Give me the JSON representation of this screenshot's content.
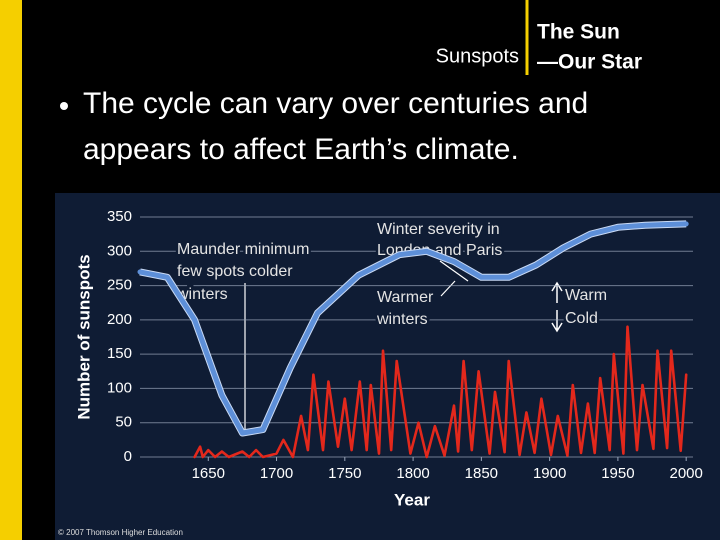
{
  "slide": {
    "left_title": "Sunspots",
    "right_title": [
      "The Sun",
      "—Our Star"
    ],
    "bullet": [
      "The cycle can vary over centuries and",
      "appears to affect Earth’s climate."
    ],
    "credit": "© 2007 Thomson Higher Education"
  },
  "chart_data": {
    "type": "line",
    "xlabel": "Year",
    "ylabel": "Number of sunspots",
    "xlim": [
      1600,
      2005
    ],
    "xticks": [
      1650,
      1700,
      1750,
      1800,
      1850,
      1900,
      1950,
      2000
    ],
    "ylim": [
      0,
      350
    ],
    "yticks": [
      0,
      50,
      100,
      150,
      200,
      250,
      300,
      350
    ],
    "grid": true,
    "annotations": {
      "maunder": [
        "Maunder minimum",
        "few spots colder",
        "winters"
      ],
      "severity": [
        "Winter severity in",
        "London and Paris"
      ],
      "warmer": [
        "Warmer",
        "winters"
      ],
      "warm": "Warm",
      "cold": "Cold"
    },
    "series": [
      {
        "name": "Winter severity",
        "color": "#5d8fd8",
        "x": [
          1600,
          1620,
          1640,
          1660,
          1675,
          1690,
          1710,
          1730,
          1760,
          1790,
          1810,
          1830,
          1850,
          1870,
          1890,
          1910,
          1930,
          1950,
          1970,
          2000
        ],
        "values": [
          270,
          262,
          200,
          90,
          35,
          40,
          130,
          210,
          265,
          295,
          300,
          285,
          262,
          262,
          280,
          305,
          325,
          335,
          338,
          340
        ]
      },
      {
        "name": "Sunspots",
        "color": "#e3281c",
        "x": [
          1640,
          1644,
          1646,
          1650,
          1655,
          1660,
          1665,
          1675,
          1680,
          1685,
          1690,
          1700,
          1705,
          1712,
          1718,
          1723,
          1727,
          1734,
          1738,
          1745,
          1750,
          1755,
          1761,
          1766,
          1769,
          1775,
          1778,
          1784,
          1788,
          1798,
          1804,
          1810,
          1816,
          1823,
          1830,
          1833,
          1837,
          1843,
          1848,
          1856,
          1860,
          1867,
          1870,
          1878,
          1883,
          1889,
          1894,
          1901,
          1906,
          1913,
          1917,
          1923,
          1928,
          1933,
          1937,
          1944,
          1947,
          1954,
          1957,
          1964,
          1968,
          1976,
          1979,
          1986,
          1989,
          1996,
          2000
        ],
        "values": [
          0,
          15,
          0,
          10,
          0,
          8,
          0,
          8,
          0,
          10,
          0,
          5,
          25,
          0,
          60,
          10,
          120,
          10,
          110,
          15,
          85,
          10,
          110,
          10,
          105,
          5,
          155,
          10,
          140,
          5,
          50,
          0,
          45,
          2,
          75,
          8,
          140,
          10,
          125,
          5,
          95,
          7,
          140,
          3,
          65,
          6,
          85,
          3,
          60,
          2,
          105,
          6,
          78,
          6,
          115,
          10,
          150,
          5,
          190,
          10,
          105,
          12,
          155,
          13,
          155,
          9,
          120
        ]
      }
    ]
  }
}
